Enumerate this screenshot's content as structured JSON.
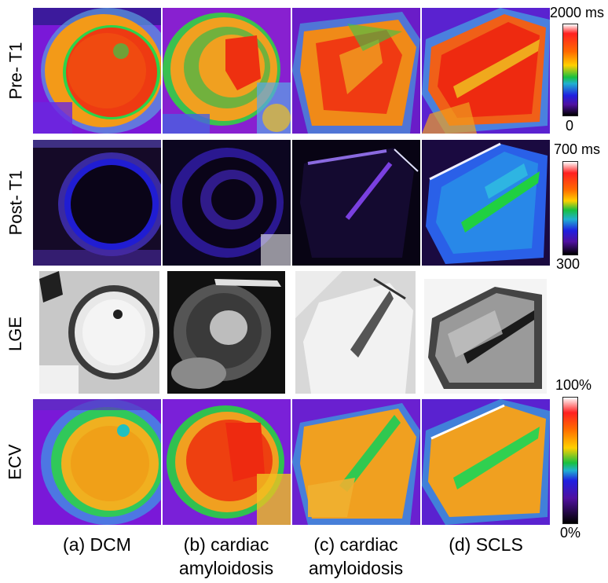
{
  "rows": [
    {
      "label": "Pre- T1"
    },
    {
      "label": "Post- T1"
    },
    {
      "label": "LGE"
    },
    {
      "label": "ECV"
    }
  ],
  "colorbars": {
    "pre_t1": {
      "max": "2000 ms",
      "min": "0"
    },
    "post_t1": {
      "max": "700 ms",
      "min": "300"
    },
    "ecv": {
      "max": "100%",
      "min": "0%"
    }
  },
  "columns": [
    {
      "line1": "(a) DCM",
      "line2": ""
    },
    {
      "line1": "(b) cardiac",
      "line2": "amyloidosis"
    },
    {
      "line1": "(c) cardiac",
      "line2": "amyloidosis"
    },
    {
      "line1": "(d) SCLS",
      "line2": ""
    }
  ]
}
